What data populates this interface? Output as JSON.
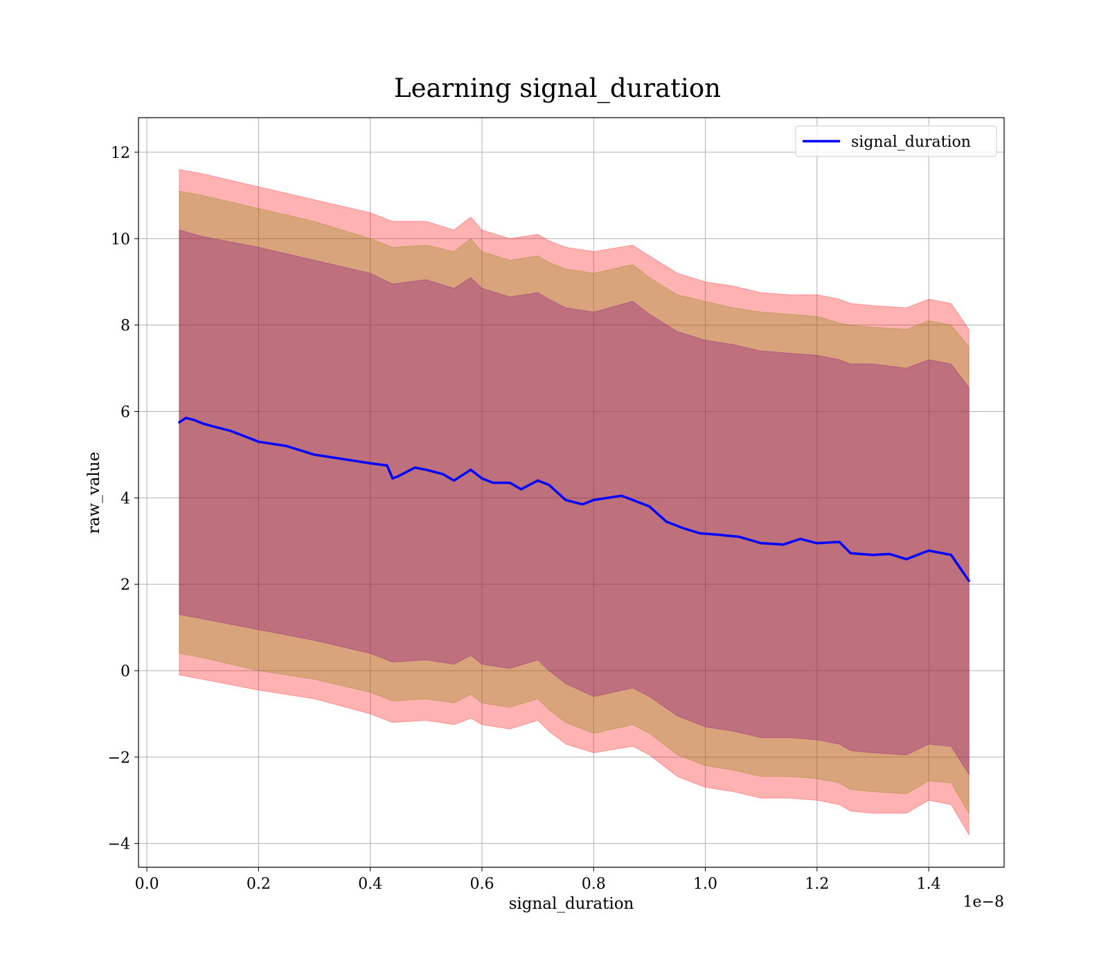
{
  "chart_data": {
    "type": "line",
    "title": "Learning signal_duration",
    "xlabel": "signal_duration",
    "ylabel": "raw_value",
    "x_scale_label": "1e−8",
    "xlim": [
      -0.015,
      1.535
    ],
    "ylim": [
      -4.55,
      12.8
    ],
    "x_ticks": [
      0.0,
      0.2,
      0.4,
      0.6,
      0.8,
      1.0,
      1.2,
      1.4
    ],
    "x_tick_labels": [
      "0.0",
      "0.2",
      "0.4",
      "0.6",
      "0.8",
      "1.0",
      "1.2",
      "1.4"
    ],
    "y_ticks": [
      -4,
      -2,
      0,
      2,
      4,
      6,
      8,
      10,
      12
    ],
    "y_tick_labels": [
      "−4",
      "−2",
      "0",
      "2",
      "4",
      "6",
      "8",
      "10",
      "12"
    ],
    "grid": true,
    "legend_position": "top-right",
    "series": [
      {
        "name": "signal_duration",
        "color": "#0000ff",
        "x": [
          0.058,
          0.07,
          0.085,
          0.1,
          0.12,
          0.15,
          0.18,
          0.2,
          0.25,
          0.3,
          0.35,
          0.4,
          0.43,
          0.44,
          0.45,
          0.48,
          0.5,
          0.53,
          0.55,
          0.58,
          0.6,
          0.62,
          0.65,
          0.67,
          0.7,
          0.72,
          0.75,
          0.78,
          0.8,
          0.85,
          0.87,
          0.9,
          0.93,
          0.96,
          0.99,
          1.02,
          1.06,
          1.1,
          1.14,
          1.17,
          1.2,
          1.24,
          1.26,
          1.3,
          1.33,
          1.36,
          1.4,
          1.44,
          1.472
        ],
        "values": [
          5.75,
          5.85,
          5.8,
          5.72,
          5.65,
          5.55,
          5.4,
          5.3,
          5.2,
          5.0,
          4.9,
          4.8,
          4.75,
          4.45,
          4.5,
          4.7,
          4.65,
          4.55,
          4.4,
          4.65,
          4.45,
          4.35,
          4.35,
          4.2,
          4.4,
          4.3,
          3.95,
          3.85,
          3.95,
          4.05,
          3.95,
          3.8,
          3.45,
          3.3,
          3.18,
          3.15,
          3.1,
          2.95,
          2.92,
          3.05,
          2.95,
          2.98,
          2.72,
          2.68,
          2.7,
          2.58,
          2.78,
          2.68,
          2.08
        ]
      }
    ],
    "bands": [
      {
        "color": "#ff0000",
        "opacity": 0.3,
        "x": [
          0.058,
          0.1,
          0.2,
          0.3,
          0.4,
          0.44,
          0.5,
          0.55,
          0.58,
          0.6,
          0.65,
          0.7,
          0.72,
          0.75,
          0.8,
          0.87,
          0.9,
          0.95,
          1.0,
          1.05,
          1.1,
          1.15,
          1.2,
          1.24,
          1.26,
          1.3,
          1.36,
          1.4,
          1.44,
          1.472
        ],
        "upper": [
          11.6,
          11.5,
          11.2,
          10.9,
          10.6,
          10.4,
          10.4,
          10.2,
          10.5,
          10.2,
          10.0,
          10.1,
          9.95,
          9.8,
          9.7,
          9.85,
          9.6,
          9.2,
          9.0,
          8.9,
          8.75,
          8.7,
          8.7,
          8.6,
          8.5,
          8.45,
          8.4,
          8.6,
          8.5,
          7.9
        ],
        "lower": [
          -0.1,
          -0.2,
          -0.45,
          -0.65,
          -1.0,
          -1.2,
          -1.15,
          -1.25,
          -1.1,
          -1.25,
          -1.35,
          -1.15,
          -1.4,
          -1.7,
          -1.9,
          -1.75,
          -1.95,
          -2.45,
          -2.7,
          -2.8,
          -2.95,
          -2.95,
          -3.0,
          -3.1,
          -3.25,
          -3.3,
          -3.3,
          -3.0,
          -3.1,
          -3.8
        ]
      },
      {
        "color": "#808000",
        "opacity": 0.3,
        "x": [
          0.058,
          0.1,
          0.2,
          0.3,
          0.4,
          0.44,
          0.5,
          0.55,
          0.58,
          0.6,
          0.65,
          0.7,
          0.72,
          0.75,
          0.8,
          0.87,
          0.9,
          0.95,
          1.0,
          1.05,
          1.1,
          1.15,
          1.2,
          1.24,
          1.26,
          1.3,
          1.36,
          1.4,
          1.44,
          1.472
        ],
        "upper": [
          11.1,
          11.0,
          10.7,
          10.4,
          10.0,
          9.8,
          9.85,
          9.7,
          10.0,
          9.7,
          9.5,
          9.6,
          9.45,
          9.3,
          9.2,
          9.4,
          9.1,
          8.7,
          8.55,
          8.4,
          8.3,
          8.25,
          8.2,
          8.05,
          8.0,
          7.95,
          7.9,
          8.1,
          8.0,
          7.5
        ],
        "lower": [
          0.4,
          0.3,
          0.0,
          -0.2,
          -0.5,
          -0.7,
          -0.65,
          -0.75,
          -0.55,
          -0.75,
          -0.85,
          -0.65,
          -0.9,
          -1.2,
          -1.45,
          -1.25,
          -1.45,
          -1.95,
          -2.2,
          -2.3,
          -2.45,
          -2.45,
          -2.5,
          -2.6,
          -2.75,
          -2.8,
          -2.85,
          -2.55,
          -2.6,
          -3.3
        ]
      },
      {
        "color": "#800080",
        "opacity": 0.3,
        "x": [
          0.058,
          0.1,
          0.2,
          0.3,
          0.4,
          0.44,
          0.5,
          0.55,
          0.58,
          0.6,
          0.65,
          0.7,
          0.72,
          0.75,
          0.8,
          0.87,
          0.9,
          0.95,
          1.0,
          1.05,
          1.1,
          1.15,
          1.2,
          1.24,
          1.26,
          1.3,
          1.36,
          1.4,
          1.44,
          1.472
        ],
        "upper": [
          10.2,
          10.05,
          9.8,
          9.5,
          9.2,
          8.95,
          9.05,
          8.85,
          9.1,
          8.85,
          8.65,
          8.75,
          8.6,
          8.4,
          8.3,
          8.55,
          8.25,
          7.85,
          7.65,
          7.55,
          7.4,
          7.35,
          7.3,
          7.2,
          7.1,
          7.1,
          7.0,
          7.2,
          7.1,
          6.55
        ],
        "lower": [
          1.3,
          1.2,
          0.95,
          0.7,
          0.4,
          0.2,
          0.25,
          0.15,
          0.35,
          0.15,
          0.05,
          0.25,
          0.0,
          -0.3,
          -0.6,
          -0.4,
          -0.6,
          -1.05,
          -1.3,
          -1.4,
          -1.55,
          -1.55,
          -1.6,
          -1.7,
          -1.85,
          -1.9,
          -1.95,
          -1.7,
          -1.75,
          -2.4
        ]
      }
    ]
  }
}
